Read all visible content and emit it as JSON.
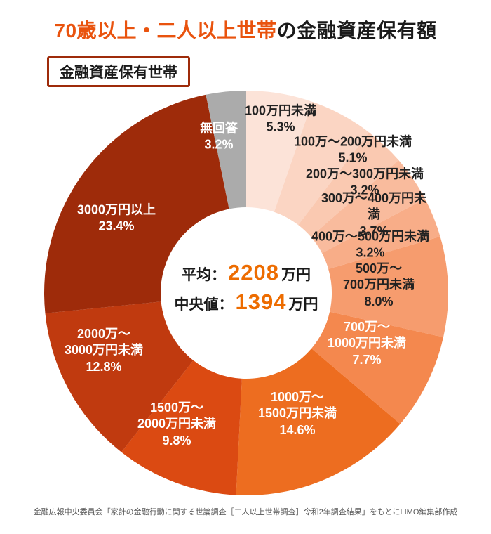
{
  "title": {
    "highlight": "70歳以上・二人以上世帯",
    "rest": "の金融資産保有額"
  },
  "badge_label": "金融資産保有世帯",
  "center_stats": {
    "average_label": "平均：",
    "average_value": "2208",
    "average_unit": "万円",
    "median_label": "中央値：",
    "median_value": "1394",
    "median_unit": "万円"
  },
  "source_note": "金融広報中央委員会「家計の金融行動に関する世論調査［二人以上世帯調査］令和2年調査結果」をもとにLIMO編集部作成",
  "colors": {
    "title_accent": "#e9530e",
    "number_accent": "#ed6c00",
    "badge_border": "#9e2b0a"
  },
  "chart_data": {
    "type": "pie",
    "variant": "donut",
    "title": "70歳以上・二人以上世帯の金融資産保有額",
    "subtitle": "金融資産保有世帯",
    "unit": "%",
    "start_angle_deg": 0,
    "direction": "clockwise",
    "annotations": [
      "平均：2208万円",
      "中央値：1394万円"
    ],
    "segments": [
      {
        "label": "100万円未満",
        "value": 5.3,
        "color": "#fce3d8",
        "label_color": "#222222"
      },
      {
        "label": "100万〜200万円未満",
        "value": 5.1,
        "color": "#fbd5c3",
        "label_color": "#222222"
      },
      {
        "label": "200万〜300万円未満",
        "value": 3.2,
        "color": "#fac9b1",
        "label_color": "#222222"
      },
      {
        "label": "300万〜400万円未満",
        "value": 3.7,
        "color": "#f9bb9d",
        "label_color": "#222222"
      },
      {
        "label": "400万〜500万円未満",
        "value": 3.2,
        "color": "#f8ad88",
        "label_color": "#222222"
      },
      {
        "label": "500万〜\n700万円未満",
        "value": 8.0,
        "color": "#f69c6e",
        "label_color": "#222222"
      },
      {
        "label": "700万〜\n1000万円未満",
        "value": 7.7,
        "color": "#f4884e",
        "label_color": "#ffffff"
      },
      {
        "label": "1000万〜\n1500万円未満",
        "value": 14.6,
        "color": "#ed6d20",
        "label_color": "#ffffff"
      },
      {
        "label": "1500万〜\n2000万円未満",
        "value": 9.8,
        "color": "#db4a12",
        "label_color": "#ffffff"
      },
      {
        "label": "2000万〜\n3000万円未満",
        "value": 12.8,
        "color": "#c03a0f",
        "label_color": "#ffffff"
      },
      {
        "label": "3000万円以上",
        "value": 23.4,
        "color": "#9e2b0a",
        "label_color": "#ffffff"
      },
      {
        "label": "無回答",
        "value": 3.2,
        "color": "#ababab",
        "label_color": "#ffffff"
      }
    ]
  }
}
